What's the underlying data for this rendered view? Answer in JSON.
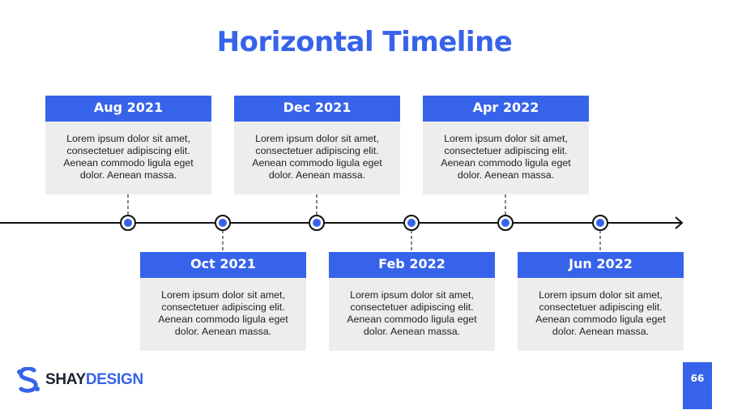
{
  "slide": {
    "title": "Horizontal Timeline",
    "page_number": "66"
  },
  "brand": {
    "name_part1": "SHAY",
    "name_part2": "DESIGN",
    "accent_color": "#3763ea",
    "card_bg_color": "#ededed",
    "logo_icon": "s-logo-icon"
  },
  "timeline": {
    "events": [
      {
        "date": "Aug 2021",
        "lines": [
          "Lorem ipsum dolor sit amet,",
          "consectetuer adipiscing elit.",
          "Aenean commodo ligula eget",
          "dolor. Aenean massa."
        ]
      },
      {
        "date": "Oct 2021",
        "lines": [
          "Lorem ipsum dolor sit amet,",
          "consectetuer adipiscing elit.",
          "Aenean commodo ligula eget",
          "dolor. Aenean massa."
        ]
      },
      {
        "date": "Dec 2021",
        "lines": [
          "Lorem ipsum dolor sit amet,",
          "consectetuer adipiscing elit.",
          "Aenean commodo ligula eget",
          "dolor. Aenean massa."
        ]
      },
      {
        "date": "Feb 2022",
        "lines": [
          "Lorem ipsum dolor sit amet,",
          "consectetuer adipiscing elit.",
          "Aenean commodo ligula eget",
          "dolor. Aenean massa."
        ]
      },
      {
        "date": "Apr 2022",
        "lines": [
          "Lorem ipsum dolor sit amet,",
          "consectetuer adipiscing elit.",
          "Aenean commodo ligula eget",
          "dolor. Aenean massa."
        ]
      },
      {
        "date": "Jun 2022",
        "lines": [
          "Lorem ipsum dolor sit amet,",
          "consectetuer adipiscing elit.",
          "Aenean commodo ligula eget",
          "dolor. Aenean massa."
        ]
      }
    ]
  }
}
